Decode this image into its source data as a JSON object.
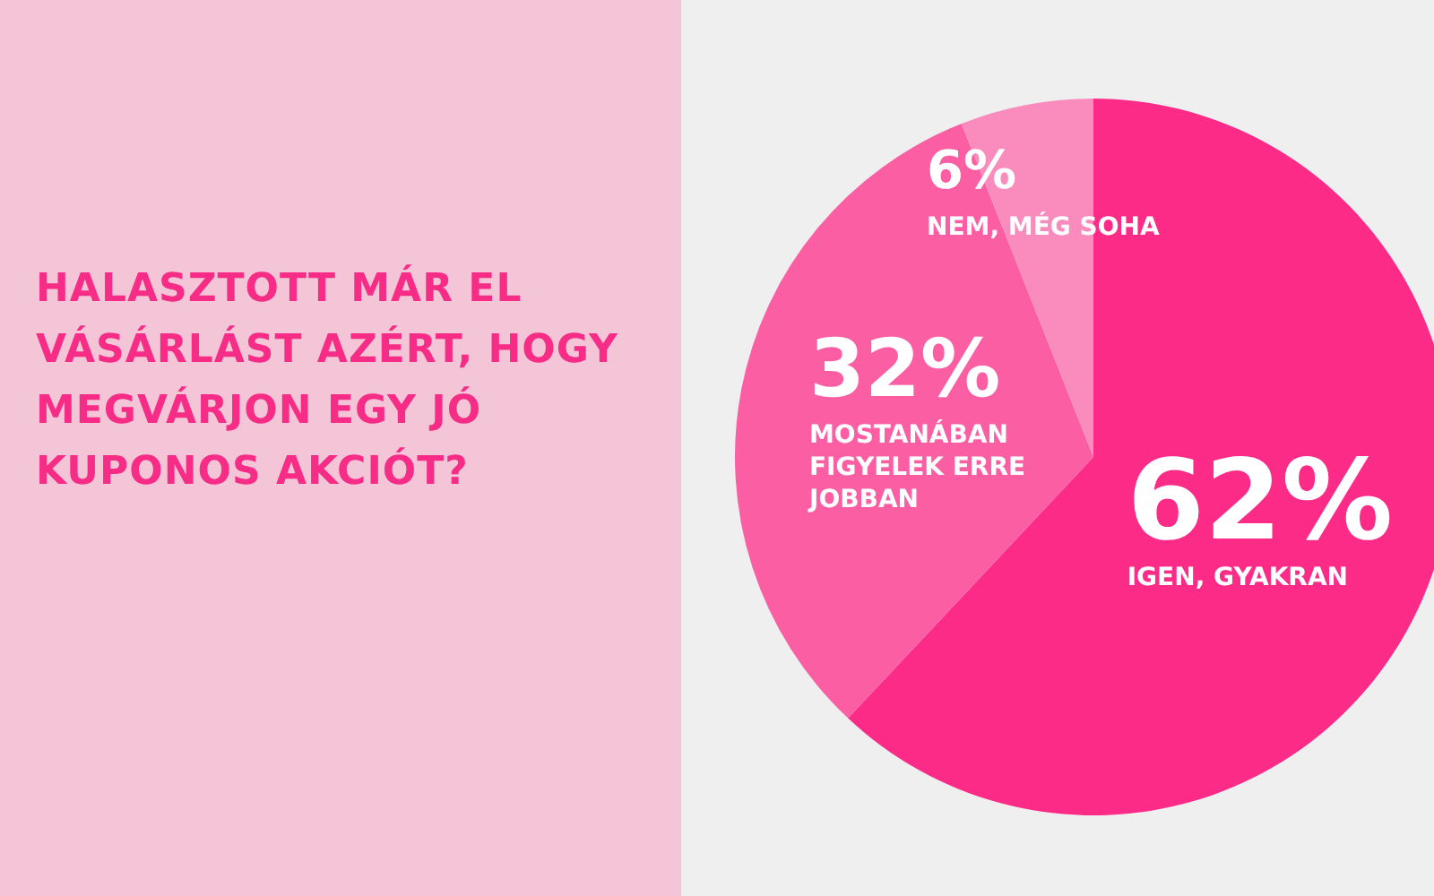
{
  "chart_data": {
    "type": "pie",
    "title": "HALASZTOTT MÁR EL VÁSÁRLÁST AZÉRT, HOGY MEGVÁRJON EGY JÓ KUPONOS AKCIÓT?",
    "categories": [
      "IGEN, GYAKRAN",
      "MOSTANÁBAN FIGYELEK ERRE JOBBAN",
      "NEM, MÉG SOHA"
    ],
    "values": [
      62,
      32,
      6
    ],
    "colors": [
      "#fd2b88",
      "#fb5ea3",
      "#f98cbd"
    ],
    "value_labels": [
      "62%",
      "32%",
      "6%"
    ],
    "legend": false
  }
}
